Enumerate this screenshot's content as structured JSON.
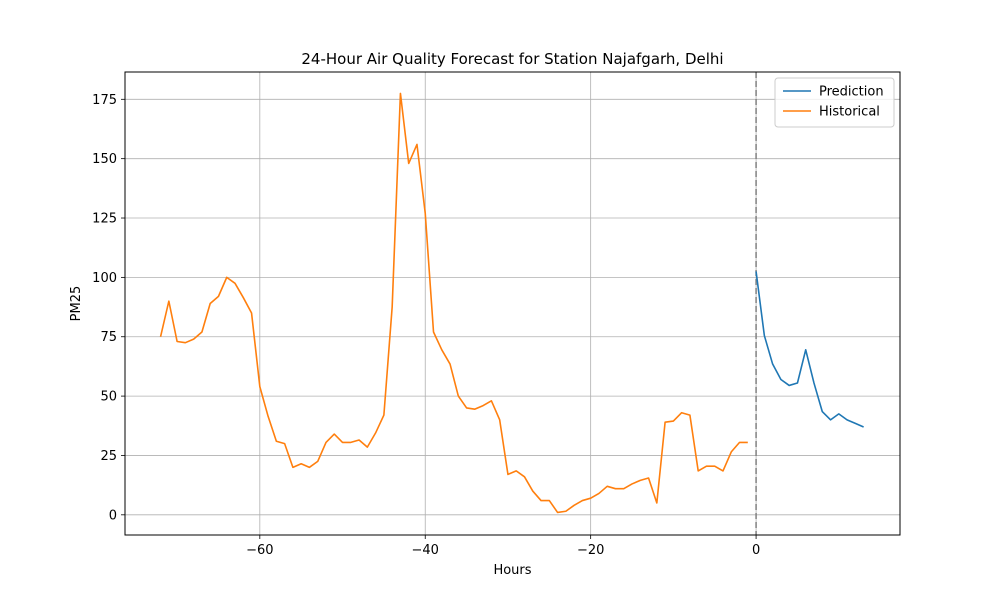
{
  "chart_data": {
    "type": "line",
    "title": "24-Hour Air Quality Forecast for Station Najafgarh, Delhi",
    "xlabel": "Hours",
    "ylabel": "PM25",
    "xlim": [
      -76.3,
      17.4
    ],
    "ylim": [
      -8.5,
      186.5
    ],
    "xticks": [
      -60,
      -40,
      -20,
      0
    ],
    "xtick_labels": [
      "−60",
      "−40",
      "−20",
      "0"
    ],
    "yticks": [
      0,
      25,
      50,
      75,
      100,
      125,
      150,
      175
    ],
    "ytick_labels": [
      "0",
      "25",
      "50",
      "75",
      "100",
      "125",
      "150",
      "175"
    ],
    "grid": true,
    "legend_position": "upper right",
    "vline": {
      "x": 0,
      "style": "dashed",
      "color": "#808080"
    },
    "series": [
      {
        "name": "Prediction",
        "color": "#1f77b4",
        "x": [
          0,
          1,
          2,
          3,
          4,
          5,
          6,
          7,
          8,
          9,
          10,
          11,
          12,
          13
        ],
        "y": [
          102.5,
          75.5,
          63.5,
          57.0,
          54.5,
          55.5,
          69.5,
          55.5,
          43.5,
          40.0,
          42.5,
          40.0,
          38.5,
          37.0
        ]
      },
      {
        "name": "Historical",
        "color": "#ff7f0e",
        "x": [
          -72,
          -71,
          -70,
          -69,
          -68,
          -67,
          -66,
          -65,
          -64,
          -63,
          -62,
          -61,
          -60,
          -59,
          -58,
          -57,
          -56,
          -55,
          -54,
          -53,
          -52,
          -51,
          -50,
          -49,
          -48,
          -47,
          -46,
          -45,
          -44,
          -43,
          -42,
          -41,
          -40,
          -39,
          -38,
          -37,
          -36,
          -35,
          -34,
          -33,
          -32,
          -31,
          -30,
          -29,
          -28,
          -27,
          -26,
          -25,
          -24,
          -23,
          -22,
          -21,
          -20,
          -19,
          -18,
          -17,
          -16,
          -15,
          -14,
          -13,
          -12,
          -11,
          -10,
          -9,
          -8,
          -7,
          -6,
          -5,
          -4,
          -3,
          -2,
          -1
        ],
        "y": [
          75.0,
          90.0,
          73.0,
          72.5,
          74.0,
          77.0,
          89.0,
          92.0,
          100.0,
          97.5,
          91.5,
          85.0,
          54.0,
          41.5,
          31.0,
          30.0,
          20.0,
          21.5,
          20.0,
          22.5,
          30.5,
          34.0,
          30.5,
          30.5,
          31.5,
          28.5,
          34.5,
          42.0,
          87.5,
          177.5,
          148.0,
          156.0,
          127.0,
          77.0,
          69.5,
          63.5,
          50.0,
          45.0,
          44.5,
          46.0,
          48.0,
          40.0,
          17.0,
          18.5,
          16.0,
          10.0,
          6.0,
          6.0,
          1.0,
          1.5,
          4.0,
          6.0,
          7.0,
          9.0,
          12.0,
          11.0,
          11.0,
          13.0,
          14.5,
          15.5,
          5.0,
          39.0,
          39.5,
          43.0,
          42.0,
          18.5,
          20.5,
          20.5,
          18.5,
          26.5,
          30.5,
          30.5
        ]
      }
    ]
  }
}
